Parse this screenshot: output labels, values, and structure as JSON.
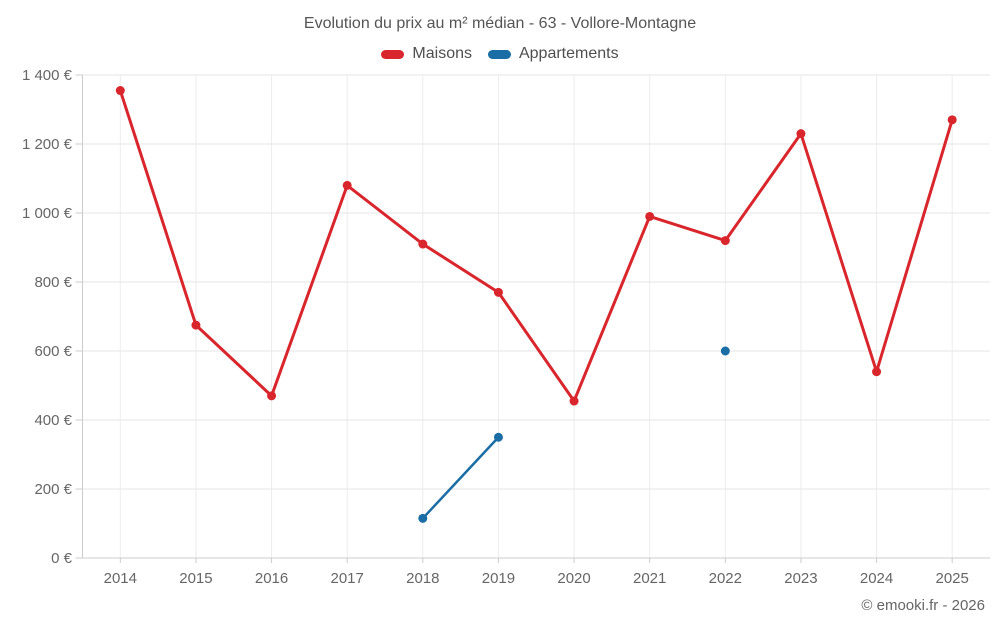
{
  "header": {
    "title": "Evolution du prix au m² médian - 63 - Vollore-Montagne"
  },
  "legend": [
    {
      "label": "Maisons",
      "color": "#d9262c"
    },
    {
      "label": "Appartements",
      "color": "#1a6da5"
    }
  ],
  "footer": {
    "attribution": "© emooki.fr - 2026"
  },
  "colors": {
    "axis_line": "#cccccc",
    "gridline_h": "#e6e6e6",
    "gridline_v": "#ececec",
    "tick_label": "#666666",
    "title_text": "#555555"
  },
  "chart_data": {
    "type": "line",
    "title": "Evolution du prix au m² médian - 63 - Vollore-Montagne",
    "categories": [
      "2014",
      "2015",
      "2016",
      "2017",
      "2018",
      "2019",
      "2020",
      "2021",
      "2022",
      "2023",
      "2024",
      "2025"
    ],
    "series": [
      {
        "name": "Maisons",
        "color": "#d9262c",
        "stroke_width": 3,
        "values": [
          1355,
          675,
          470,
          1080,
          910,
          770,
          455,
          990,
          920,
          1230,
          540,
          1270
        ]
      },
      {
        "name": "Appartements",
        "color": "#1a6da5",
        "stroke_width": 2.5,
        "values": [
          null,
          null,
          null,
          null,
          115,
          350,
          null,
          null,
          600,
          null,
          null,
          null
        ]
      }
    ],
    "xlabel": "",
    "ylabel": "",
    "ylim": [
      0,
      1400
    ],
    "y_tick_step": 200,
    "y_tick_labels": [
      "0 €",
      "200 €",
      "400 €",
      "600 €",
      "800 €",
      "1 000 €",
      "1 200 €",
      "1 400 €"
    ],
    "grid": true,
    "legend_position": "top"
  }
}
